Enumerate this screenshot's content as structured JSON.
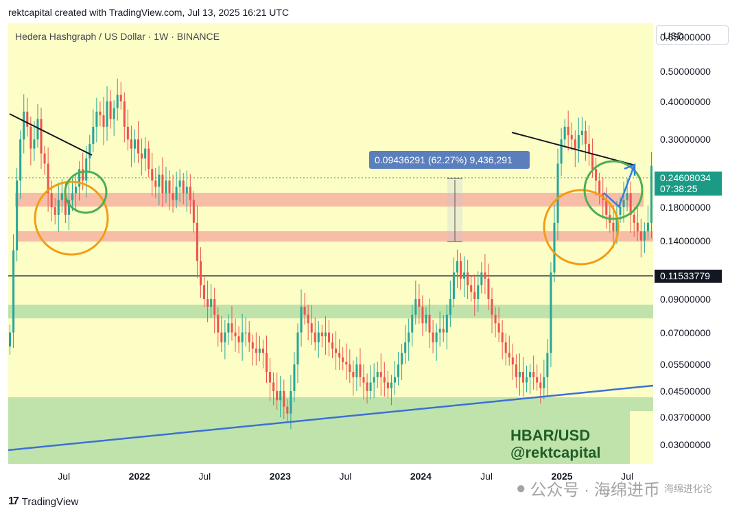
{
  "header": {
    "text": "rektcapital created with TradingView.com, Jul 13, 2025 16:21 UTC"
  },
  "chart_title": "Hedera Hashgraph / US Dollar · 1W · BINANCE",
  "currency": "USD",
  "footer": {
    "logo": "TradingView"
  },
  "watermark": {
    "line1": "HBAR/USD",
    "line2": "@rektcapital"
  },
  "wechat": {
    "text": "公众号 · 海绵进币",
    "overlay": "海绵进化论"
  },
  "measure": {
    "label": "0.09436291 (62.27%) 9,436,291"
  },
  "price_badge": {
    "price": "0.24608034",
    "countdown": "07:38:25"
  },
  "support_badge": {
    "price": "0.11533779"
  },
  "colors": {
    "up": "#26a69a",
    "down": "#ef5350",
    "plot_bg": "#fdfdc6",
    "red_zone": "#f6b6a3",
    "green_zone": "#bfe3aa",
    "trendline": "#3b6fd8",
    "orange": "#f39c12",
    "green_circle": "#4caf50",
    "badge_teal": "#1b9a86"
  },
  "chart_data": {
    "type": "candlestick",
    "title": "Hedera Hashgraph / US Dollar · 1W · BINANCE",
    "scale": "log",
    "ylim": [
      0.026,
      0.72
    ],
    "x_range": [
      "2021-02",
      "2025-09"
    ],
    "price_ticks": [
      "0.65000000",
      "0.50000000",
      "0.40000000",
      "0.30000000",
      "0.18000000",
      "0.14000000",
      "0.09000000",
      "0.07000000",
      "0.05500000",
      "0.04500000",
      "0.03700000",
      "0.03000000"
    ],
    "time_ticks": [
      {
        "label": "Jul",
        "t": "2021-07"
      },
      {
        "label": "2022",
        "t": "2022-01"
      },
      {
        "label": "Jul",
        "t": "2022-07"
      },
      {
        "label": "2023",
        "t": "2023-01"
      },
      {
        "label": "Jul",
        "t": "2023-07"
      },
      {
        "label": "2024",
        "t": "2024-01"
      },
      {
        "label": "Jul",
        "t": "2024-07"
      },
      {
        "label": "2025",
        "t": "2025-01"
      },
      {
        "label": "Jul",
        "t": "2025-07"
      }
    ],
    "weekly_closes": [
      0.07,
      0.13,
      0.22,
      0.3,
      0.37,
      0.33,
      0.28,
      0.3,
      0.35,
      0.27,
      0.25,
      0.2,
      0.18,
      0.17,
      0.19,
      0.2,
      0.17,
      0.19,
      0.2,
      0.21,
      0.24,
      0.22,
      0.26,
      0.29,
      0.33,
      0.37,
      0.36,
      0.33,
      0.4,
      0.35,
      0.38,
      0.42,
      0.4,
      0.33,
      0.3,
      0.28,
      0.3,
      0.27,
      0.26,
      0.28,
      0.24,
      0.22,
      0.21,
      0.23,
      0.2,
      0.22,
      0.2,
      0.19,
      0.21,
      0.22,
      0.2,
      0.21,
      0.19,
      0.16,
      0.12,
      0.1,
      0.09,
      0.085,
      0.09,
      0.08,
      0.07,
      0.065,
      0.07,
      0.075,
      0.07,
      0.068,
      0.065,
      0.07,
      0.07,
      0.065,
      0.062,
      0.06,
      0.062,
      0.06,
      0.052,
      0.048,
      0.045,
      0.042,
      0.045,
      0.04,
      0.038,
      0.045,
      0.055,
      0.07,
      0.085,
      0.08,
      0.075,
      0.07,
      0.065,
      0.07,
      0.068,
      0.07,
      0.065,
      0.062,
      0.06,
      0.058,
      0.056,
      0.055,
      0.052,
      0.05,
      0.055,
      0.05,
      0.048,
      0.045,
      0.048,
      0.05,
      0.052,
      0.05,
      0.048,
      0.046,
      0.048,
      0.05,
      0.055,
      0.06,
      0.065,
      0.07,
      0.08,
      0.09,
      0.085,
      0.075,
      0.08,
      0.07,
      0.065,
      0.07,
      0.072,
      0.07,
      0.08,
      0.09,
      0.11,
      0.12,
      0.105,
      0.11,
      0.1,
      0.095,
      0.09,
      0.1,
      0.11,
      0.105,
      0.09,
      0.08,
      0.075,
      0.07,
      0.065,
      0.06,
      0.058,
      0.055,
      0.05,
      0.052,
      0.048,
      0.05,
      0.052,
      0.05,
      0.048,
      0.046,
      0.05,
      0.06,
      0.11,
      0.16,
      0.25,
      0.3,
      0.33,
      0.31,
      0.3,
      0.28,
      0.31,
      0.32,
      0.29,
      0.27,
      0.24,
      0.22,
      0.2,
      0.19,
      0.17,
      0.16,
      0.15,
      0.17,
      0.18,
      0.19,
      0.2,
      0.17,
      0.16,
      0.15,
      0.14,
      0.15,
      0.16,
      0.246
    ]
  }
}
